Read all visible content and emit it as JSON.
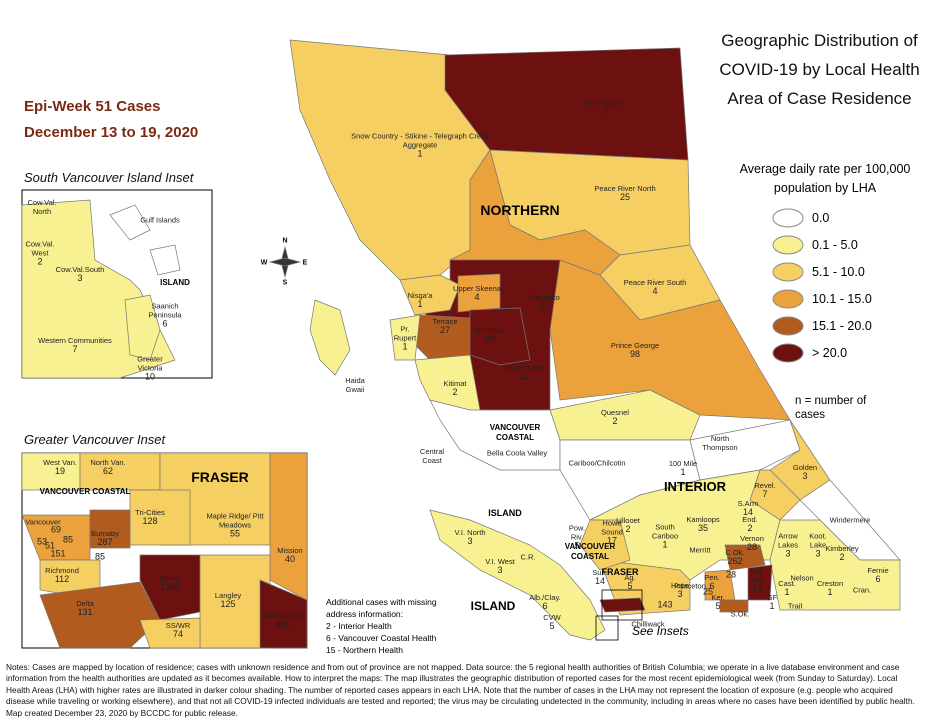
{
  "title": "Geographic Distribution of COVID-19 by Local Health Area of Case Residence",
  "epi_week": {
    "title": "Epi-Week 51 Cases",
    "dates": "December 13 to 19, 2020"
  },
  "legend": {
    "title": "Average daily rate per 100,000 population by LHA",
    "items": [
      {
        "label": "0.0",
        "color": "#ffffff"
      },
      {
        "label": "0.1 - 5.0",
        "color": "#f7f191"
      },
      {
        "label": "5.1 - 10.0",
        "color": "#f6cf62"
      },
      {
        "label": "10.1 - 15.0",
        "color": "#eca23c"
      },
      {
        "label": "15.1 - 20.0",
        "color": "#b15c1e"
      },
      {
        "label": "> 20.0",
        "color": "#6d1010"
      }
    ],
    "note": "n = number of cases"
  },
  "compass": [
    "N",
    "E",
    "S",
    "W"
  ],
  "main_map": {
    "authorities": [
      "NORTHERN",
      "INTERIOR",
      "VANCOUVER COASTAL",
      "ISLAND",
      "VANCOUVER COASTAL",
      "FRASER",
      "ISLAND"
    ],
    "labels": [
      {
        "name": "Fort Nelson",
        "cases": 7
      },
      {
        "name": "Snow Country - Stikine - Telegraph Creek Aggregate",
        "cases": 1
      },
      {
        "name": "Peace River North",
        "cases": 25
      },
      {
        "name": "Peace River South",
        "cases": 4
      },
      {
        "name": "Nechako",
        "cases": 27
      },
      {
        "name": "Nisga'a",
        "cases": 1
      },
      {
        "name": "Upper Skeena",
        "cases": 4
      },
      {
        "name": "Terrace",
        "cases": 27
      },
      {
        "name": "Smithers",
        "cases": 29
      },
      {
        "name": "Pr. Rupert",
        "cases": 1
      },
      {
        "name": "Burns Lake",
        "cases": 11
      },
      {
        "name": "Prince George",
        "cases": 98
      },
      {
        "name": "Haida Gwaii"
      },
      {
        "name": "Kitimat",
        "cases": 2
      },
      {
        "name": "Quesnel",
        "cases": 2
      },
      {
        "name": "Central Coast"
      },
      {
        "name": "Bella Coola Valley"
      },
      {
        "name": "Cariboo/Chilcotin"
      },
      {
        "name": "North Thompson"
      },
      {
        "name": "100 Mile",
        "cases": 1
      },
      {
        "name": "Golden",
        "cases": 3
      },
      {
        "name": "Revel.",
        "cases": 7
      },
      {
        "name": "Windermere"
      },
      {
        "name": "Kamloops",
        "cases": 35
      },
      {
        "name": "Lillooet",
        "cases": 2
      },
      {
        "name": "South Cariboo",
        "cases": 1
      },
      {
        "name": "S.Arm",
        "cases": 14
      },
      {
        "name": "End.",
        "cases": 2
      },
      {
        "name": "Vernon",
        "cases": 28
      },
      {
        "name": "Arrow Lakes",
        "cases": 3
      },
      {
        "name": "Koot. Lake",
        "cases": 3
      },
      {
        "name": "Kimberley",
        "cases": 2
      },
      {
        "name": "Merritt"
      },
      {
        "name": "C.Ok.",
        "cases": 262
      },
      {
        "name": "Nelson"
      },
      {
        "name": "Cran."
      },
      {
        "name": "Fernie",
        "cases": 6
      },
      {
        "name": "Princeton"
      },
      {
        "name": "Pen.",
        "cases": 6
      },
      {
        "name": "Ker.",
        "cases": 5
      },
      {
        "name": "S.Ok."
      },
      {
        "name": "Ket. Val.",
        "cases": 14
      },
      {
        "name": "GF",
        "cases": 1
      },
      {
        "name": "Cast.",
        "cases": 1
      },
      {
        "name": "Creston",
        "cases": 1
      },
      {
        "name": "Trail"
      },
      {
        "name": "Chilliwack"
      },
      {
        "name": "Hope",
        "cases": 3
      },
      {
        "name": "Ag.",
        "cases": 5
      },
      {
        "name": "Sun.",
        "cases": 14
      },
      {
        "name": "Howe Sound",
        "cases": 17
      },
      {
        "name": "Pow. Riv.",
        "cases": 5
      },
      {
        "name": "V.I. North",
        "cases": 3
      },
      {
        "name": "V.I. West",
        "cases": 3
      },
      {
        "name": "C.R."
      },
      {
        "name": "Alb./Clay.",
        "cases": 6
      },
      {
        "name": "CVW",
        "cases": 5
      },
      {
        "cases": 28
      },
      {
        "cases": 25
      },
      {
        "cases": 143
      }
    ]
  },
  "south_island_inset": {
    "title": "South Vancouver Island Inset",
    "authorities": [
      "ISLAND"
    ],
    "labels": [
      {
        "name": "Cow.Val. North"
      },
      {
        "name": "Cow.Val. West",
        "cases": 2
      },
      {
        "name": "Cow.Val.South",
        "cases": 3
      },
      {
        "name": "Gulf Islands"
      },
      {
        "name": "Saanich Peninsula",
        "cases": 6
      },
      {
        "name": "Western Communities",
        "cases": 7
      },
      {
        "name": "Greater Victoria",
        "cases": 10
      }
    ]
  },
  "greater_vancouver_inset": {
    "title": "Greater Vancouver Inset",
    "authorities": [
      "VANCOUVER COASTAL",
      "FRASER"
    ],
    "labels": [
      {
        "name": "West Van.",
        "cases": 19
      },
      {
        "name": "North Van.",
        "cases": 62
      },
      {
        "name": "Tri-Cities",
        "cases": 128
      },
      {
        "name": "Maple Ridge/ Pitt Meadows",
        "cases": 55
      },
      {
        "name": "Mission",
        "cases": 40
      },
      {
        "name": "Vancouver"
      },
      {
        "cases": 69
      },
      {
        "cases": 85
      },
      {
        "cases": 53
      },
      {
        "cases": 51
      },
      {
        "cases": 151
      },
      {
        "name": "Burnaby",
        "cases": 287
      },
      {
        "cases": 85
      },
      {
        "name": "Richmond",
        "cases": 112
      },
      {
        "name": "Surrey",
        "cases": 1368
      },
      {
        "name": "Delta",
        "cases": 131
      },
      {
        "name": "Langley",
        "cases": 125
      },
      {
        "name": "Abbotsford",
        "cases": 395
      },
      {
        "name": "SS/WR",
        "cases": 74
      }
    ]
  },
  "additional_cases": {
    "title": "Additional cases with missing address information:",
    "items": [
      "2 - Interior Health",
      "6 - Vancouver Coastal Health",
      "15 - Northern Health"
    ]
  },
  "see_insets": "See Insets",
  "notes": "Notes: Cases are mapped by location of residence; cases with unknown residence and from out of province are not mapped. Data source: the 5 regional health authorities of British Columbia; we operate in a live database environment and case information from the health authorities are updated as it becomes available. How to interpret the maps: The map illustrates the geographic distribution of reported cases for the most recent epidemiological week (from Sunday to Saturday). Local Health Areas (LHA) with higher rates are illustrated in darker colour shading. The number of reported cases appears in each LHA. Note that the number of cases in the LHA may not represent the location of exposure (e.g. people who acquired disease while traveling or working elsewhere), and that not all COVID-19 infected individuals are tested and reported; the virus may be circulating undetected in the community, including in areas where no cases have been identified by public health. Map created December 23, 2020 by BCCDC for public release."
}
